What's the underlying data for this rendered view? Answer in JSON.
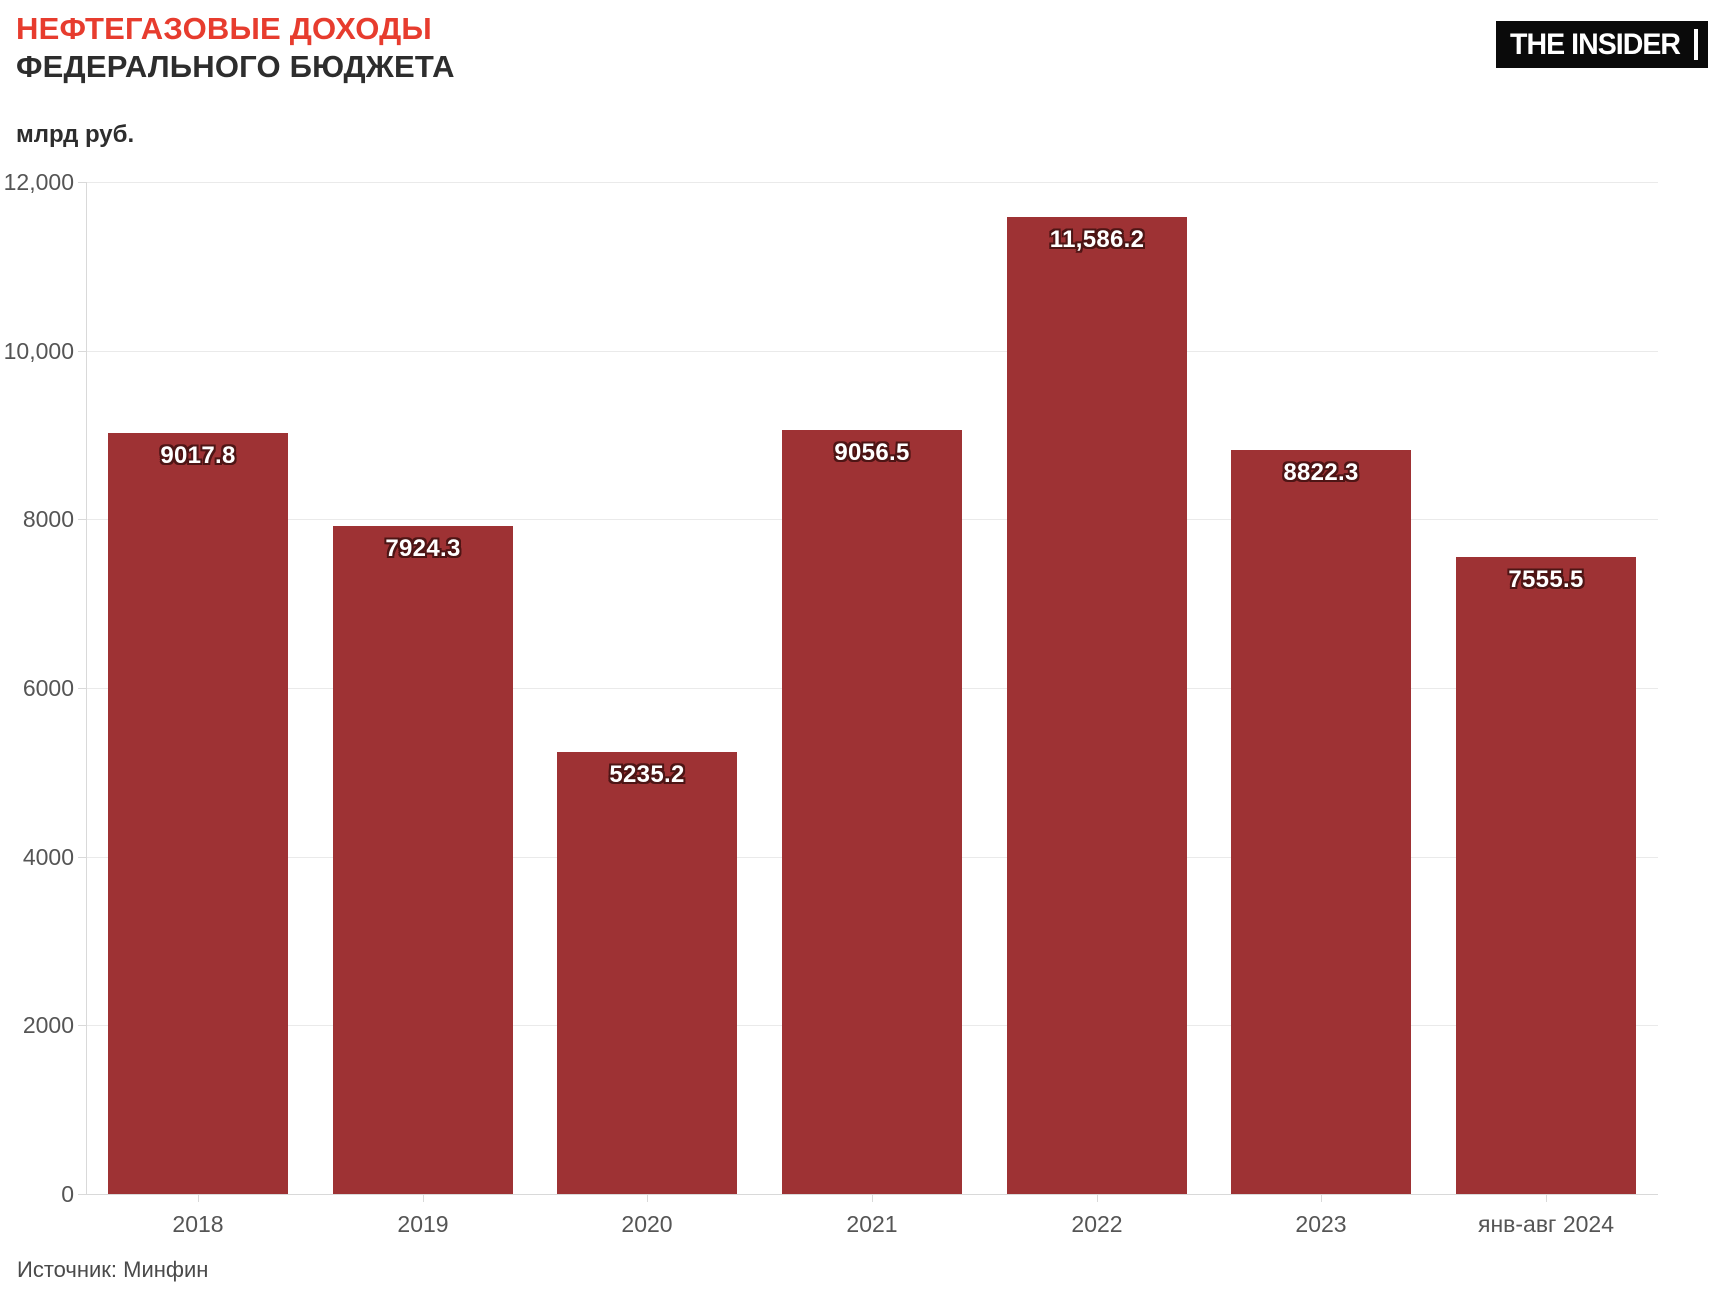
{
  "header": {
    "title_line1": "НЕФТЕГАЗОВЫЕ ДОХОДЫ",
    "title_line2": "ФЕДЕРАЛЬНОГО БЮДЖЕТА",
    "units_label": "млрд руб.",
    "logo_text": "THE INSIDER"
  },
  "footer": {
    "source": "Источник: Минфин"
  },
  "colors": {
    "accent_red": "#e73c2e",
    "title_dark": "#2d2d2d",
    "bar": "#9e3234",
    "bar_label_text": "#ffffff",
    "bar_label_outline": "#4d1515",
    "grid": "#eaeaea",
    "axis": "#d9d9d9",
    "tick_text": "#555555",
    "source_text": "#4a4a4a",
    "logo_bg": "#0a0a0a",
    "logo_text": "#ffffff"
  },
  "chart_data": {
    "type": "bar",
    "title": "Нефтегазовые доходы федерального бюджета",
    "xlabel": "",
    "ylabel": "млрд руб.",
    "categories": [
      "2018",
      "2019",
      "2020",
      "2021",
      "2022",
      "2023",
      "янв-авг 2024"
    ],
    "values": [
      9017.8,
      7924.3,
      5235.2,
      9056.5,
      11586.2,
      8822.3,
      7555.5
    ],
    "value_labels": [
      "9017.8",
      "7924.3",
      "5235.2",
      "9056.5",
      "11,586.2",
      "8822.3",
      "7555.5"
    ],
    "ylim": [
      0,
      12000
    ],
    "ytick_values": [
      0,
      2000,
      4000,
      6000,
      8000,
      10000,
      12000
    ],
    "ytick_labels": [
      "0",
      "2000",
      "4000",
      "6000",
      "8000",
      "10,000",
      "12,000"
    ],
    "grid": true,
    "legend": "none",
    "bar_color": "#9e3234"
  }
}
